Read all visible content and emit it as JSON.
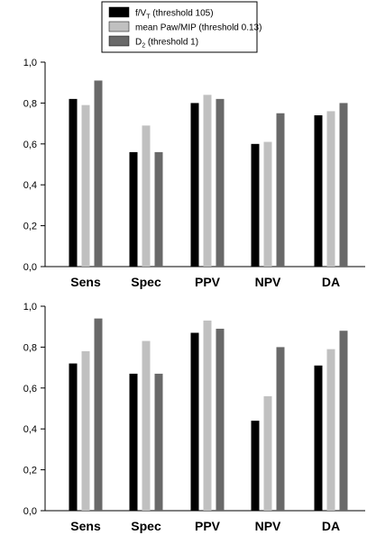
{
  "legend": {
    "items": [
      {
        "prefix": "f/V",
        "sub": "T",
        "suffix": " (threshold 105)",
        "color": "#000000"
      },
      {
        "prefix": "mean Paw/MIP (threshold 0.13)",
        "sub": "",
        "suffix": "",
        "color": "#c0c0c0"
      },
      {
        "prefix": "D",
        "sub": "2",
        "suffix": " (threshold 1)",
        "color": "#696969"
      }
    ]
  },
  "chart_data": [
    {
      "type": "bar",
      "categories": [
        "Sens",
        "Spec",
        "PPV",
        "NPV",
        "DA"
      ],
      "series": [
        {
          "name": "f/VT (threshold 105)",
          "color": "#000000",
          "values": [
            0.82,
            0.56,
            0.8,
            0.6,
            0.74
          ]
        },
        {
          "name": "mean Paw/MIP (threshold 0.13)",
          "color": "#c0c0c0",
          "values": [
            0.79,
            0.69,
            0.84,
            0.61,
            0.76
          ]
        },
        {
          "name": "D2 (threshold 1)",
          "color": "#696969",
          "values": [
            0.91,
            0.56,
            0.82,
            0.75,
            0.8
          ]
        }
      ],
      "ylim": [
        0,
        1
      ],
      "yticks": [
        "0,0",
        "0,2",
        "0,4",
        "0,6",
        "0,8",
        "1,0"
      ],
      "title": "",
      "xlabel": "",
      "ylabel": "",
      "grid": false,
      "legend_position": "top-center"
    },
    {
      "type": "bar",
      "categories": [
        "Sens",
        "Spec",
        "PPV",
        "NPV",
        "DA"
      ],
      "series": [
        {
          "name": "f/VT (threshold 105)",
          "color": "#000000",
          "values": [
            0.72,
            0.67,
            0.87,
            0.44,
            0.71
          ]
        },
        {
          "name": "mean Paw/MIP (threshold 0.13)",
          "color": "#c0c0c0",
          "values": [
            0.78,
            0.83,
            0.93,
            0.56,
            0.79
          ]
        },
        {
          "name": "D2 (threshold 1)",
          "color": "#696969",
          "values": [
            0.94,
            0.67,
            0.89,
            0.8,
            0.88
          ]
        }
      ],
      "ylim": [
        0,
        1
      ],
      "yticks": [
        "0,0",
        "0,2",
        "0,4",
        "0,6",
        "0,8",
        "1,0"
      ],
      "title": "",
      "xlabel": "",
      "ylabel": "",
      "grid": false
    }
  ]
}
